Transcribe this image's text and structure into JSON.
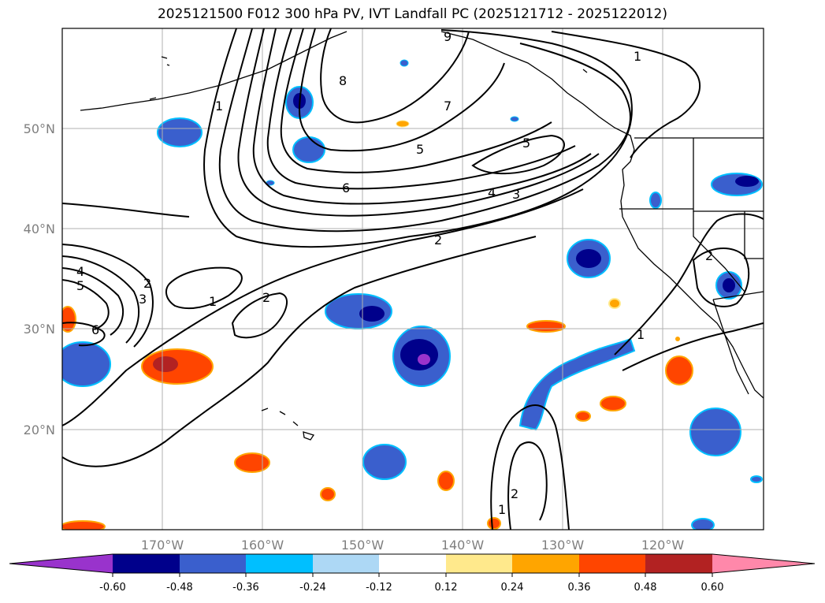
{
  "title": "2025121500 F012 300 hPa PV, IVT Landfall PC (2025121712 - 2025122012)",
  "map": {
    "lon_range": [
      -180,
      -110
    ],
    "lat_range": [
      10,
      60
    ],
    "lat_ticks": [
      {
        "value": 50,
        "label": "50°N"
      },
      {
        "value": 40,
        "label": "40°N"
      },
      {
        "value": 30,
        "label": "30°N"
      },
      {
        "value": 20,
        "label": "20°N"
      }
    ],
    "lon_ticks": [
      {
        "value": -170,
        "label": "170°W"
      },
      {
        "value": -160,
        "label": "160°W"
      },
      {
        "value": -150,
        "label": "150°W"
      },
      {
        "value": -140,
        "label": "140°W"
      },
      {
        "value": -130,
        "label": "130°W"
      },
      {
        "value": -120,
        "label": "120°W"
      }
    ],
    "contour_labels": [
      "9",
      "1",
      "8",
      "7",
      "5",
      "5",
      "6",
      "4",
      "3",
      "2",
      "1",
      "2",
      "1",
      "2",
      "3",
      "4",
      "5",
      "6",
      "2",
      "1",
      "1",
      "2"
    ]
  },
  "colorbar": {
    "ticks": [
      "-0.60",
      "-0.48",
      "-0.36",
      "-0.24",
      "-0.12",
      "0.12",
      "0.24",
      "0.36",
      "0.48",
      "0.60"
    ],
    "colors": [
      "#9933cc",
      "#00008b",
      "#3a5fcd",
      "#00bfff",
      "#add8f5",
      "#ffffff",
      "#ffe98c",
      "#ffa500",
      "#ff4500",
      "#b22222",
      "#ff88aa"
    ]
  }
}
